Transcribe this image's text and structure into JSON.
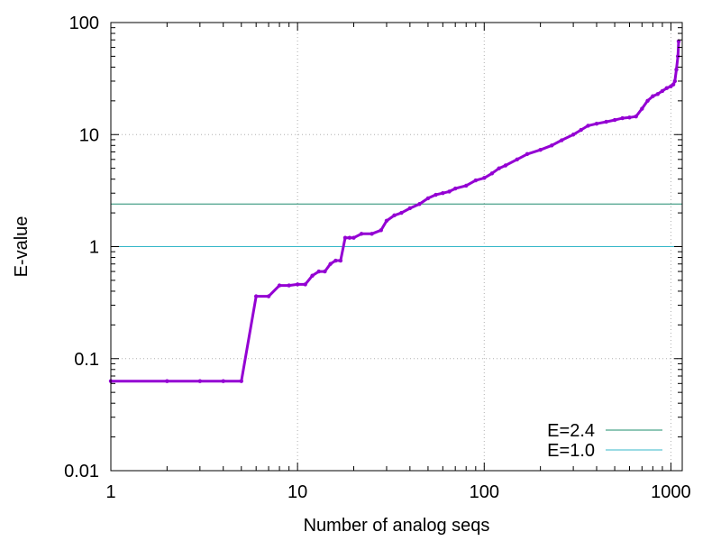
{
  "chart_data": {
    "type": "line",
    "title": "",
    "xlabel": "Number of analog seqs",
    "ylabel": "E-value",
    "x_scale": "log",
    "y_scale": "log",
    "xlim": [
      1,
      1150
    ],
    "ylim": [
      0.01,
      100
    ],
    "grid": true,
    "legend_position": "bottom-right",
    "x_ticks": [
      {
        "value": 1,
        "label": "1"
      },
      {
        "value": 10,
        "label": "10"
      },
      {
        "value": 100,
        "label": "100"
      },
      {
        "value": 1000,
        "label": "1000"
      }
    ],
    "y_ticks": [
      {
        "value": 0.01,
        "label": "0.01"
      },
      {
        "value": 0.1,
        "label": "0.1"
      },
      {
        "value": 1,
        "label": "1"
      },
      {
        "value": 10,
        "label": "10"
      },
      {
        "value": 100,
        "label": "100"
      }
    ],
    "series": [
      {
        "name": "",
        "color": "#9400d3",
        "style": "linespoints",
        "x": [
          1,
          2,
          3,
          4,
          5,
          6,
          7,
          8,
          9,
          10,
          11,
          12,
          13,
          14,
          15,
          16,
          17,
          18,
          19,
          20,
          22,
          25,
          28,
          30,
          33,
          36,
          40,
          45,
          50,
          55,
          60,
          65,
          70,
          80,
          90,
          100,
          110,
          120,
          130,
          150,
          170,
          200,
          230,
          260,
          300,
          330,
          360,
          400,
          450,
          500,
          550,
          600,
          650,
          700,
          750,
          800,
          850,
          900,
          950,
          1000,
          1030,
          1050,
          1070,
          1090,
          1100
        ],
        "y": [
          0.063,
          0.063,
          0.063,
          0.063,
          0.063,
          0.36,
          0.36,
          0.45,
          0.45,
          0.46,
          0.46,
          0.55,
          0.6,
          0.6,
          0.7,
          0.75,
          0.75,
          1.2,
          1.2,
          1.2,
          1.3,
          1.3,
          1.4,
          1.7,
          1.9,
          2.0,
          2.2,
          2.4,
          2.7,
          2.9,
          3.0,
          3.1,
          3.3,
          3.5,
          3.9,
          4.1,
          4.5,
          5.0,
          5.3,
          6.0,
          6.7,
          7.3,
          8.0,
          8.9,
          10.0,
          11.0,
          12.0,
          12.5,
          13.0,
          13.5,
          14.0,
          14.2,
          14.5,
          17.0,
          20.0,
          22.0,
          23.0,
          24.5,
          26.0,
          27.0,
          28.0,
          30.0,
          38.0,
          50.0,
          68.0
        ]
      },
      {
        "name": "E=2.4",
        "color": "#1e8c6e",
        "style": "hline",
        "y_value": 2.4
      },
      {
        "name": "E=1.0",
        "color": "#35b7c8",
        "style": "hline",
        "y_value": 1.0
      }
    ]
  }
}
